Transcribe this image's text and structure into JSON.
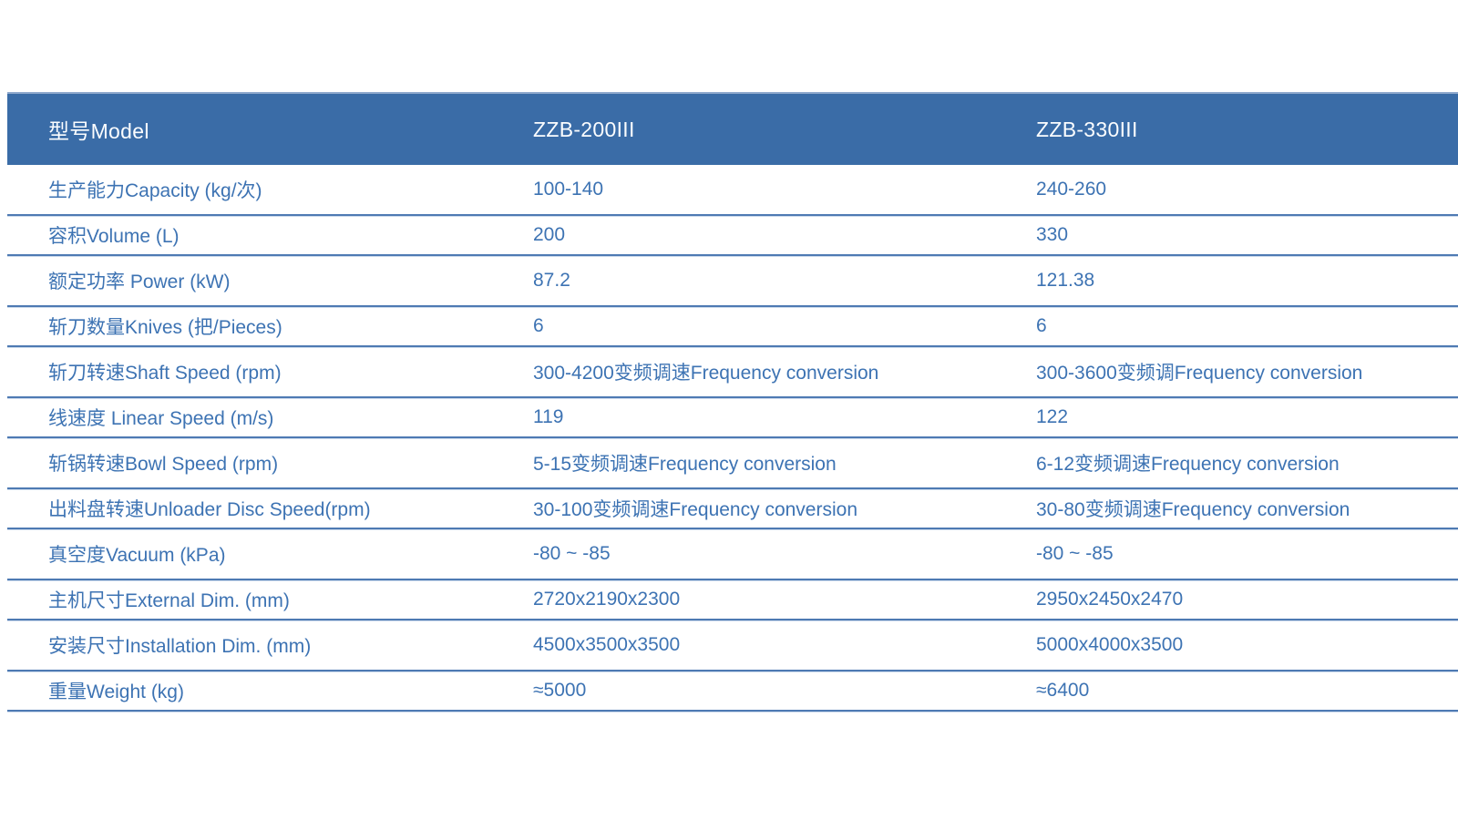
{
  "colors": {
    "header_bg": "#3a6ca7",
    "header_text": "#fbfdff",
    "body_text": "#3d73b3",
    "row_border": "#4e7ab3",
    "page_bg": "#ffffff"
  },
  "table": {
    "header": {
      "label": "型号Model",
      "model_1": "ZZB-200III",
      "model_2": "ZZB-330III"
    },
    "rows": [
      {
        "label": "生产能力Capacity (kg/次)",
        "v1": "100-140",
        "v2": "240-260"
      },
      {
        "label": "容积Volume (L)",
        "v1": "200",
        "v2": "330"
      },
      {
        "label": "额定功率 Power (kW)",
        "v1": "87.2",
        "v2": "121.38"
      },
      {
        "label": "斩刀数量Knives (把/Pieces)",
        "v1": "6",
        "v2": "6"
      },
      {
        "label": "斩刀转速Shaft Speed (rpm)",
        "v1": "300-4200变频调速Frequency conversion",
        "v2": "300-3600变频调Frequency conversion"
      },
      {
        "label": "线速度 Linear Speed (m/s)",
        "v1": "119",
        "v2": "122"
      },
      {
        "label": "斩锅转速Bowl Speed (rpm)",
        "v1": "5-15变频调速Frequency conversion",
        "v2": "6-12变频调速Frequency conversion"
      },
      {
        "label": "出料盘转速Unloader Disc Speed(rpm)",
        "v1": "30-100变频调速Frequency conversion",
        "v2": "30-80变频调速Frequency conversion"
      },
      {
        "label": "真空度Vacuum (kPa)",
        "v1": "-80 ~ -85",
        "v2": "-80 ~ -85"
      },
      {
        "label": "主机尺寸External Dim. (mm)",
        "v1": "2720x2190x2300",
        "v2": "2950x2450x2470"
      },
      {
        "label": "安装尺寸Installation Dim. (mm)",
        "v1": "4500x3500x3500",
        "v2": "5000x4000x3500"
      },
      {
        "label": "重量Weight (kg)",
        "v1": "≈5000",
        "v2": "≈6400"
      }
    ]
  }
}
